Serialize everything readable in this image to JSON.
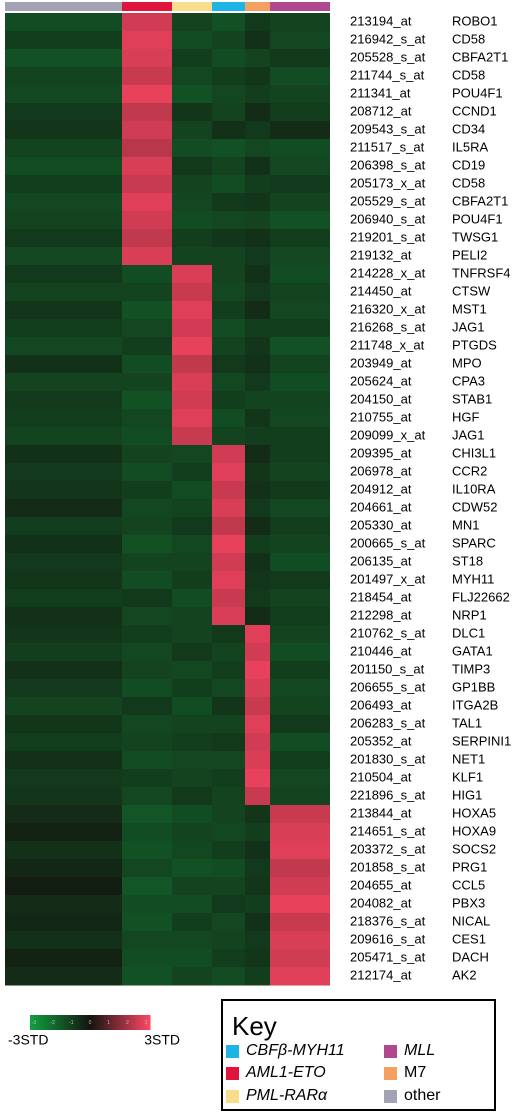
{
  "chart_data": {
    "type": "heatmap",
    "columns": [
      {
        "name": "other",
        "color": "#a3a3b5"
      },
      {
        "name": "AML1-ETO",
        "color": "#e0143c"
      },
      {
        "name": "PML-RARα",
        "color": "#f8de8a"
      },
      {
        "name": "CBFβ-MYH11",
        "color": "#1eb4e6"
      },
      {
        "name": "M7",
        "color": "#f4a060"
      },
      {
        "name": "MLL",
        "color": "#b04890"
      }
    ],
    "rows": [
      [
        "213194_at",
        "ROBO1"
      ],
      [
        "216942_s_at",
        "CD58"
      ],
      [
        "205528_s_at",
        "CBFA2T1"
      ],
      [
        "211744_s_at",
        "CD58"
      ],
      [
        "211341_at",
        "POU4F1"
      ],
      [
        "208712_at",
        "CCND1"
      ],
      [
        "209543_s_at",
        "CD34"
      ],
      [
        "211517_s_at",
        "IL5RA"
      ],
      [
        "206398_s_at",
        "CD19"
      ],
      [
        "205173_x_at",
        "CD58"
      ],
      [
        "205529_s_at",
        "CBFA2T1"
      ],
      [
        "206940_s_at",
        "POU4F1"
      ],
      [
        "219201_s_at",
        "TWSG1"
      ],
      [
        "219132_at",
        "PELI2"
      ],
      [
        "214228_x_at",
        "TNFRSF4"
      ],
      [
        "214450_at",
        "CTSW"
      ],
      [
        "216320_x_at",
        "MST1"
      ],
      [
        "216268_s_at",
        "JAG1"
      ],
      [
        "211748_x_at",
        "PTGDS"
      ],
      [
        "203949_at",
        "MPO"
      ],
      [
        "205624_at",
        "CPA3"
      ],
      [
        "204150_at",
        "STAB1"
      ],
      [
        "210755_at",
        "HGF"
      ],
      [
        "209099_x_at",
        "JAG1"
      ],
      [
        "209395_at",
        "CHI3L1"
      ],
      [
        "206978_at",
        "CCR2"
      ],
      [
        "204912_at",
        "IL10RA"
      ],
      [
        "204661_at",
        "CDW52"
      ],
      [
        "205330_at",
        "MN1"
      ],
      [
        "200665_s_at",
        "SPARC"
      ],
      [
        "206135_at",
        "ST18"
      ],
      [
        "201497_x_at",
        "MYH11"
      ],
      [
        "218454_at",
        "FLJ22662"
      ],
      [
        "212298_at",
        "NRP1"
      ],
      [
        "210762_s_at",
        "DLC1"
      ],
      [
        "210446_at",
        "GATA1"
      ],
      [
        "201150_s_at",
        "TIMP3"
      ],
      [
        "206655_s_at",
        "GP1BB"
      ],
      [
        "206493_at",
        "ITGA2B"
      ],
      [
        "206283_s_at",
        "TAL1"
      ],
      [
        "205352_at",
        "SERPINI1"
      ],
      [
        "201830_s_at",
        "NET1"
      ],
      [
        "210504_at",
        "KLF1"
      ],
      [
        "221896_s_at",
        "HIG1"
      ],
      [
        "213844_at",
        "HOXA5"
      ],
      [
        "214651_s_at",
        "HOXA9"
      ],
      [
        "203372_s_at",
        "SOCS2"
      ],
      [
        "201858_s_at",
        "PRG1"
      ],
      [
        "204655_at",
        "CCL5"
      ],
      [
        "204082_at",
        "PBX3"
      ],
      [
        "218376_s_at",
        "NICAL"
      ],
      [
        "209616_s_at",
        "CES1"
      ],
      [
        "205471_s_at",
        "DACH"
      ],
      [
        "212174_at",
        "AK2"
      ]
    ],
    "values": [
      [
        -1.2,
        2.4,
        -1,
        -1.3,
        -0.8,
        -1
      ],
      [
        -0.9,
        2.6,
        -1.2,
        -1,
        -0.6,
        -1.1
      ],
      [
        -1.3,
        2.5,
        -0.9,
        -1.2,
        -1,
        -0.8
      ],
      [
        -1,
        2.3,
        -1.1,
        -0.9,
        -0.7,
        -1.2
      ],
      [
        -1.1,
        2.7,
        -1.3,
        -1.1,
        -0.9,
        -1
      ],
      [
        -0.8,
        2.2,
        -0.7,
        -1,
        -0.5,
        -0.9
      ],
      [
        -0.7,
        2.4,
        -1,
        -0.6,
        -0.8,
        -0.5
      ],
      [
        -1,
        2.1,
        -1.2,
        -1.3,
        -1.1,
        -1.2
      ],
      [
        -1.2,
        2.5,
        -0.8,
        -1,
        -0.6,
        -1.1
      ],
      [
        -0.9,
        2.3,
        -1,
        -1.2,
        -0.9,
        -0.8
      ],
      [
        -1.1,
        2.6,
        -1.1,
        -0.8,
        -0.7,
        -1
      ],
      [
        -1,
        2.4,
        -1.2,
        -1.1,
        -1,
        -1.3
      ],
      [
        -0.8,
        2.2,
        -0.9,
        -0.7,
        -0.6,
        -0.9
      ],
      [
        -1.1,
        2.5,
        -1,
        -1,
        -0.8,
        -1.1
      ],
      [
        -0.8,
        -1.2,
        2.5,
        -1,
        -0.6,
        -1.2
      ],
      [
        -1,
        -1,
        2.3,
        -1.1,
        -0.8,
        -1
      ],
      [
        -0.7,
        -1.3,
        2.6,
        -0.9,
        -0.5,
        -1.1
      ],
      [
        -0.9,
        -1.1,
        2.4,
        -1.2,
        -0.9,
        -0.9
      ],
      [
        -1.1,
        -0.9,
        2.7,
        -1,
        -0.7,
        -1.3
      ],
      [
        -0.6,
        -1.2,
        2.2,
        -0.8,
        -0.6,
        -1
      ],
      [
        -1,
        -1,
        2.5,
        -1.1,
        -0.8,
        -1.2
      ],
      [
        -0.8,
        -1.3,
        2.4,
        -0.9,
        -1,
        -1
      ],
      [
        -0.9,
        -1.1,
        2.6,
        -1.2,
        -0.7,
        -1.1
      ],
      [
        -1,
        -1.2,
        2.3,
        -1,
        -0.9,
        -0.9
      ],
      [
        -0.6,
        -1,
        -1.1,
        2.4,
        -0.5,
        -0.9
      ],
      [
        -0.8,
        -1.2,
        -0.9,
        2.6,
        -0.7,
        -1
      ],
      [
        -0.7,
        -0.9,
        -1.2,
        2.3,
        -0.6,
        -0.8
      ],
      [
        -0.5,
        -1.1,
        -1,
        2.5,
        -0.8,
        -1.1
      ],
      [
        -0.9,
        -1,
        -0.8,
        2.2,
        -0.5,
        -0.9
      ],
      [
        -0.6,
        -1.3,
        -1.1,
        2.7,
        -0.9,
        -1
      ],
      [
        -0.8,
        -1,
        -1,
        2.4,
        -0.6,
        -1.2
      ],
      [
        -0.7,
        -1.2,
        -0.9,
        2.6,
        -0.7,
        -0.8
      ],
      [
        -0.9,
        -0.8,
        -1.2,
        2.3,
        -0.8,
        -1
      ],
      [
        -0.6,
        -1.1,
        -1,
        2.5,
        -0.5,
        -0.9
      ],
      [
        -0.7,
        -0.9,
        -1,
        -0.8,
        2.6,
        -1
      ],
      [
        -0.9,
        -1.1,
        -0.8,
        -1,
        2.4,
        -1.2
      ],
      [
        -0.6,
        -1,
        -1.1,
        -0.9,
        2.7,
        -0.9
      ],
      [
        -0.8,
        -1.2,
        -0.9,
        -1.1,
        2.5,
        -1.1
      ],
      [
        -1,
        -0.8,
        -1.2,
        -0.7,
        2.3,
        -1
      ],
      [
        -0.7,
        -1.1,
        -1,
        -1,
        2.6,
        -0.8
      ],
      [
        -0.9,
        -1,
        -0.9,
        -0.8,
        2.4,
        -1.2
      ],
      [
        -0.6,
        -1.2,
        -1.1,
        -1.1,
        2.5,
        -0.9
      ],
      [
        -0.8,
        -0.9,
        -1,
        -0.9,
        2.7,
        -1.1
      ],
      [
        -0.7,
        -1.1,
        -0.8,
        -1,
        2.3,
        -1
      ],
      [
        -0.5,
        -1.4,
        -1.2,
        -1,
        -0.7,
        2.3
      ],
      [
        -0.3,
        -1.2,
        -1,
        -1.1,
        -0.9,
        2.5
      ],
      [
        -0.6,
        -1.3,
        -1.1,
        -0.9,
        -0.6,
        2.6
      ],
      [
        -0.4,
        -1.1,
        -1.3,
        -1.2,
        -0.8,
        2.2
      ],
      [
        -0.2,
        -1.4,
        -1,
        -1,
        -0.7,
        2.4
      ],
      [
        -0.5,
        -1.2,
        -1.2,
        -0.8,
        -0.9,
        2.7
      ],
      [
        -0.4,
        -1.3,
        -0.9,
        -1.1,
        -0.6,
        2.3
      ],
      [
        -0.6,
        -1.1,
        -1.1,
        -1,
        -0.8,
        2.5
      ],
      [
        -0.3,
        -1.2,
        -1.2,
        -0.9,
        -0.7,
        2.4
      ],
      [
        -0.5,
        -1.3,
        -1,
        -1.2,
        -0.9,
        2.6
      ]
    ],
    "zlim": [
      -3,
      3
    ],
    "zticks": [
      -3,
      -2,
      -1,
      0,
      1,
      2,
      3
    ],
    "colorbar": {
      "min_label": "-3STD",
      "max_label": "3STD"
    },
    "legend_title": "Key"
  }
}
